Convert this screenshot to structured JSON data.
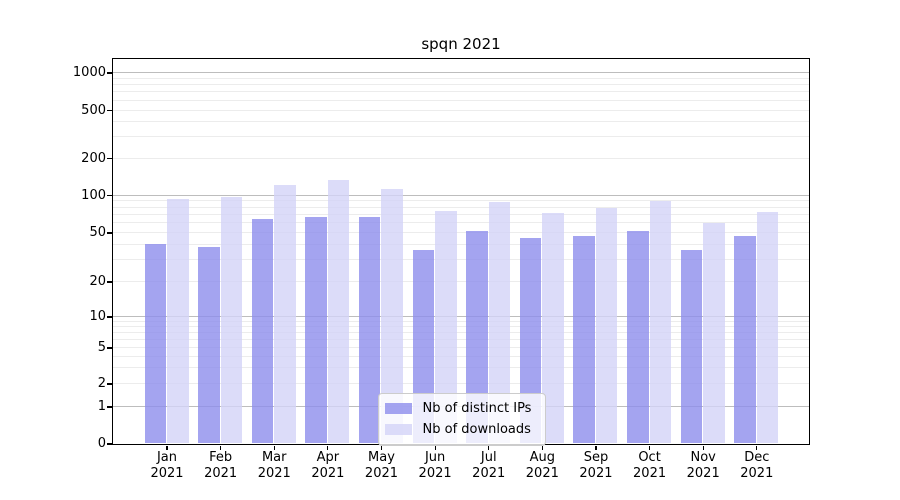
{
  "chart_data": {
    "type": "bar",
    "title": "spqn 2021",
    "x_categories": [
      "Jan",
      "Feb",
      "Mar",
      "Apr",
      "May",
      "Jun",
      "Jul",
      "Aug",
      "Sep",
      "Oct",
      "Nov",
      "Dec"
    ],
    "x_year": "2021",
    "y_axis": {
      "scale": "log-like with zero baseline",
      "ticks": [
        0,
        1,
        2,
        5,
        10,
        20,
        50,
        100,
        200,
        500,
        1000
      ],
      "ylim": [
        0,
        1300
      ],
      "grid": "horizontal major + minor log gridlines"
    },
    "series": [
      {
        "name": "Nb of distinct IPs",
        "color": "rgba(141,141,236,0.8)",
        "values": [
          40,
          38,
          64,
          67,
          66,
          36,
          51,
          45,
          47,
          51,
          36,
          47
        ]
      },
      {
        "name": "Nb of downloads",
        "color": "rgba(211,211,247,0.8)",
        "values": [
          93,
          96,
          120,
          133,
          112,
          75,
          88,
          72,
          79,
          89,
          60,
          73
        ]
      }
    ],
    "legend": {
      "position": "lower center",
      "entries": [
        "Nb of distinct IPs",
        "Nb of downloads"
      ]
    }
  }
}
